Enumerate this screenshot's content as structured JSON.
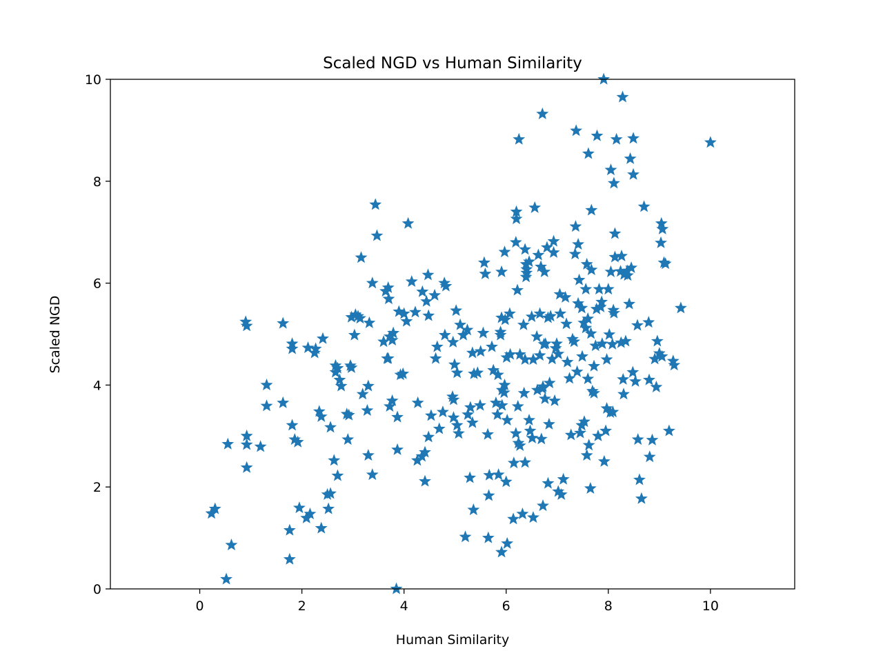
{
  "chart_data": {
    "type": "scatter",
    "title": "Scaled NGD vs Human Similarity",
    "xlabel": "Human Similarity",
    "ylabel": "Scaled NGD",
    "xlim": [
      -1.75,
      11.65
    ],
    "ylim": [
      0,
      10
    ],
    "xticks": [
      0,
      2,
      4,
      6,
      8,
      10
    ],
    "yticks": [
      0,
      2,
      4,
      6,
      8,
      10
    ],
    "xtick_labels": [
      "0",
      "2",
      "4",
      "6",
      "8",
      "10"
    ],
    "ytick_labels": [
      "0",
      "2",
      "4",
      "6",
      "8",
      "10"
    ],
    "grid": false,
    "marker": "star",
    "color": "#1f77b4",
    "series": [
      {
        "points": [
          [
            0.23,
            1.48
          ],
          [
            0.3,
            1.57
          ],
          [
            0.52,
            0.19
          ],
          [
            0.55,
            2.84
          ],
          [
            0.62,
            0.86
          ],
          [
            0.9,
            5.24
          ],
          [
            0.92,
            5.16
          ],
          [
            0.92,
            3.0
          ],
          [
            0.92,
            2.83
          ],
          [
            0.92,
            2.38
          ],
          [
            1.19,
            2.79
          ],
          [
            1.31,
            4.0
          ],
          [
            1.31,
            3.59
          ],
          [
            1.63,
            5.21
          ],
          [
            1.63,
            3.65
          ],
          [
            1.76,
            1.15
          ],
          [
            1.76,
            0.58
          ],
          [
            1.81,
            4.81
          ],
          [
            1.81,
            4.71
          ],
          [
            1.81,
            3.21
          ],
          [
            1.86,
            2.93
          ],
          [
            1.92,
            2.88
          ],
          [
            1.95,
            1.59
          ],
          [
            2.09,
            1.39
          ],
          [
            2.12,
            4.73
          ],
          [
            2.16,
            1.47
          ],
          [
            2.25,
            4.63
          ],
          [
            2.27,
            4.71
          ],
          [
            2.34,
            3.48
          ],
          [
            2.38,
            3.38
          ],
          [
            2.38,
            1.19
          ],
          [
            2.41,
            4.91
          ],
          [
            2.5,
            1.85
          ],
          [
            2.52,
            1.57
          ],
          [
            2.56,
            1.87
          ],
          [
            2.56,
            3.17
          ],
          [
            2.63,
            2.52
          ],
          [
            2.66,
            4.38
          ],
          [
            2.66,
            4.25
          ],
          [
            2.7,
            4.33
          ],
          [
            2.7,
            2.22
          ],
          [
            2.74,
            4.1
          ],
          [
            2.77,
            3.98
          ],
          [
            2.88,
            3.43
          ],
          [
            2.9,
            2.93
          ],
          [
            2.92,
            3.41
          ],
          [
            2.95,
            4.38
          ],
          [
            2.97,
            4.34
          ],
          [
            2.97,
            5.33
          ],
          [
            3.03,
            4.98
          ],
          [
            3.05,
            5.38
          ],
          [
            3.1,
            5.35
          ],
          [
            3.14,
            5.31
          ],
          [
            3.16,
            6.5
          ],
          [
            3.19,
            3.82
          ],
          [
            3.28,
            3.5
          ],
          [
            3.3,
            2.62
          ],
          [
            3.3,
            3.98
          ],
          [
            3.32,
            5.22
          ],
          [
            3.38,
            2.24
          ],
          [
            3.38,
            6.0
          ],
          [
            3.44,
            7.54
          ],
          [
            3.47,
            6.93
          ],
          [
            3.6,
            4.85
          ],
          [
            3.64,
            5.84
          ],
          [
            3.67,
            4.52
          ],
          [
            3.69,
            4.52
          ],
          [
            3.69,
            5.91
          ],
          [
            3.7,
            5.69
          ],
          [
            3.72,
            4.95
          ],
          [
            3.72,
            3.58
          ],
          [
            3.77,
            3.69
          ],
          [
            3.77,
            4.88
          ],
          [
            3.79,
            5.02
          ],
          [
            3.85,
            0.0
          ],
          [
            3.87,
            2.73
          ],
          [
            3.87,
            3.37
          ],
          [
            3.9,
            5.44
          ],
          [
            3.93,
            4.2
          ],
          [
            3.98,
            4.22
          ],
          [
            4.0,
            5.4
          ],
          [
            4.05,
            5.25
          ],
          [
            4.08,
            7.17
          ],
          [
            4.15,
            6.03
          ],
          [
            4.22,
            5.43
          ],
          [
            4.26,
            2.52
          ],
          [
            4.27,
            3.65
          ],
          [
            4.35,
            2.6
          ],
          [
            4.36,
            5.83
          ],
          [
            4.41,
            2.11
          ],
          [
            4.41,
            2.68
          ],
          [
            4.44,
            5.64
          ],
          [
            4.47,
            6.16
          ],
          [
            4.48,
            5.36
          ],
          [
            4.48,
            2.98
          ],
          [
            4.53,
            3.4
          ],
          [
            4.6,
            5.76
          ],
          [
            4.62,
            4.52
          ],
          [
            4.65,
            4.75
          ],
          [
            4.69,
            3.14
          ],
          [
            4.76,
            3.47
          ],
          [
            4.79,
            6.0
          ],
          [
            4.8,
            4.98
          ],
          [
            4.82,
            5.94
          ],
          [
            4.95,
            3.77
          ],
          [
            4.96,
            4.84
          ],
          [
            4.97,
            3.71
          ],
          [
            4.97,
            3.36
          ],
          [
            4.99,
            4.4
          ],
          [
            5.02,
            5.46
          ],
          [
            5.04,
            3.21
          ],
          [
            5.04,
            4.24
          ],
          [
            5.07,
            3.05
          ],
          [
            5.1,
            5.18
          ],
          [
            5.16,
            4.98
          ],
          [
            5.2,
            1.02
          ],
          [
            5.24,
            5.08
          ],
          [
            5.25,
            3.42
          ],
          [
            5.29,
            2.18
          ],
          [
            5.3,
            3.56
          ],
          [
            5.34,
            4.63
          ],
          [
            5.34,
            3.26
          ],
          [
            5.36,
            1.55
          ],
          [
            5.37,
            4.22
          ],
          [
            5.44,
            4.24
          ],
          [
            5.49,
            3.6
          ],
          [
            5.5,
            4.66
          ],
          [
            5.55,
            5.02
          ],
          [
            5.57,
            6.4
          ],
          [
            5.59,
            6.18
          ],
          [
            5.64,
            3.03
          ],
          [
            5.65,
            1.0
          ],
          [
            5.66,
            1.83
          ],
          [
            5.67,
            2.23
          ],
          [
            5.72,
            4.75
          ],
          [
            5.75,
            4.29
          ],
          [
            5.8,
            3.65
          ],
          [
            5.83,
            3.42
          ],
          [
            5.84,
            4.2
          ],
          [
            5.85,
            2.24
          ],
          [
            5.89,
            5.04
          ],
          [
            5.89,
            4.98
          ],
          [
            5.91,
            5.32
          ],
          [
            5.91,
            6.22
          ],
          [
            5.91,
            0.72
          ],
          [
            5.92,
            3.9
          ],
          [
            5.92,
            3.6
          ],
          [
            5.96,
            3.85
          ],
          [
            5.97,
            6.61
          ],
          [
            5.97,
            4.0
          ],
          [
            5.98,
            5.28
          ],
          [
            6.0,
            2.1
          ],
          [
            6.01,
            4.54
          ],
          [
            6.02,
            0.89
          ],
          [
            6.02,
            3.31
          ],
          [
            6.07,
            5.4
          ],
          [
            6.08,
            4.6
          ],
          [
            6.14,
            1.37
          ],
          [
            6.15,
            2.47
          ],
          [
            6.19,
            3.05
          ],
          [
            6.19,
            6.8
          ],
          [
            6.2,
            7.4
          ],
          [
            6.2,
            7.26
          ],
          [
            6.22,
            5.86
          ],
          [
            6.23,
            3.58
          ],
          [
            6.24,
            2.86
          ],
          [
            6.25,
            8.82
          ],
          [
            6.27,
            4.6
          ],
          [
            6.27,
            2.81
          ],
          [
            6.32,
            1.47
          ],
          [
            6.34,
            5.18
          ],
          [
            6.35,
            3.84
          ],
          [
            6.37,
            6.66
          ],
          [
            6.37,
            2.48
          ],
          [
            6.37,
            4.5
          ],
          [
            6.39,
            6.37
          ],
          [
            6.39,
            6.12
          ],
          [
            6.4,
            6.2
          ],
          [
            6.4,
            6.27
          ],
          [
            6.45,
            6.42
          ],
          [
            6.45,
            3.31
          ],
          [
            6.47,
            3.1
          ],
          [
            6.5,
            5.34
          ],
          [
            6.51,
            2.96
          ],
          [
            6.53,
            4.5
          ],
          [
            6.53,
            1.4
          ],
          [
            6.56,
            7.48
          ],
          [
            6.6,
            4.95
          ],
          [
            6.61,
            3.9
          ],
          [
            6.63,
            6.55
          ],
          [
            6.66,
            5.4
          ],
          [
            6.66,
            4.58
          ],
          [
            6.68,
            6.32
          ],
          [
            6.69,
            2.94
          ],
          [
            6.71,
            9.32
          ],
          [
            6.71,
            3.93
          ],
          [
            6.72,
            1.63
          ],
          [
            6.72,
            3.97
          ],
          [
            6.74,
            4.8
          ],
          [
            6.75,
            6.22
          ],
          [
            6.76,
            3.73
          ],
          [
            6.77,
            4.81
          ],
          [
            6.8,
            6.7
          ],
          [
            6.82,
            2.07
          ],
          [
            6.82,
            5.32
          ],
          [
            6.84,
            3.23
          ],
          [
            6.85,
            4.04
          ],
          [
            6.87,
            5.35
          ],
          [
            6.9,
            4.51
          ],
          [
            6.93,
            6.6
          ],
          [
            6.93,
            6.82
          ],
          [
            6.95,
            3.69
          ],
          [
            6.97,
            4.72
          ],
          [
            6.99,
            4.81
          ],
          [
            7.02,
            4.61
          ],
          [
            7.02,
            1.91
          ],
          [
            7.05,
            5.78
          ],
          [
            7.06,
            5.4
          ],
          [
            7.08,
            1.85
          ],
          [
            7.12,
            2.15
          ],
          [
            7.16,
            5.72
          ],
          [
            7.18,
            5.2
          ],
          [
            7.2,
            4.45
          ],
          [
            7.24,
            4.13
          ],
          [
            7.27,
            3.02
          ],
          [
            7.3,
            4.9
          ],
          [
            7.33,
            4.85
          ],
          [
            7.35,
            6.57
          ],
          [
            7.36,
            7.11
          ],
          [
            7.37,
            8.99
          ],
          [
            7.39,
            4.26
          ],
          [
            7.41,
            6.76
          ],
          [
            7.41,
            5.6
          ],
          [
            7.43,
            6.06
          ],
          [
            7.45,
            3.06
          ],
          [
            7.48,
            5.51
          ],
          [
            7.48,
            3.21
          ],
          [
            7.49,
            4.56
          ],
          [
            7.52,
            5.22
          ],
          [
            7.53,
            3.28
          ],
          [
            7.56,
            5.12
          ],
          [
            7.56,
            5.88
          ],
          [
            7.58,
            6.37
          ],
          [
            7.58,
            2.62
          ],
          [
            7.6,
            4.12
          ],
          [
            7.6,
            5.3
          ],
          [
            7.61,
            8.54
          ],
          [
            7.62,
            2.82
          ],
          [
            7.65,
            1.97
          ],
          [
            7.66,
            5.01
          ],
          [
            7.67,
            7.43
          ],
          [
            7.67,
            6.26
          ],
          [
            7.69,
            3.88
          ],
          [
            7.72,
            4.37
          ],
          [
            7.72,
            3.84
          ],
          [
            7.75,
            4.77
          ],
          [
            7.77,
            5.49
          ],
          [
            7.78,
            8.89
          ],
          [
            7.8,
            3.0
          ],
          [
            7.82,
            5.88
          ],
          [
            7.85,
            5.53
          ],
          [
            7.87,
            5.63
          ],
          [
            7.88,
            4.81
          ],
          [
            7.91,
            10.0
          ],
          [
            7.92,
            2.5
          ],
          [
            7.95,
            3.1
          ],
          [
            7.97,
            4.5
          ],
          [
            7.97,
            3.54
          ],
          [
            8.0,
            5.88
          ],
          [
            8.02,
            4.99
          ],
          [
            8.04,
            3.46
          ],
          [
            8.05,
            8.22
          ],
          [
            8.05,
            6.22
          ],
          [
            8.08,
            4.8
          ],
          [
            8.09,
            3.47
          ],
          [
            8.1,
            5.47
          ],
          [
            8.11,
            5.41
          ],
          [
            8.11,
            7.96
          ],
          [
            8.13,
            6.51
          ],
          [
            8.13,
            6.97
          ],
          [
            8.16,
            8.82
          ],
          [
            8.24,
            6.23
          ],
          [
            8.25,
            4.83
          ],
          [
            8.26,
            6.53
          ],
          [
            8.28,
            9.65
          ],
          [
            8.29,
            4.11
          ],
          [
            8.3,
            3.82
          ],
          [
            8.31,
            6.17
          ],
          [
            8.34,
            4.86
          ],
          [
            8.37,
            6.24
          ],
          [
            8.38,
            6.15
          ],
          [
            8.41,
            5.59
          ],
          [
            8.43,
            8.44
          ],
          [
            8.45,
            6.3
          ],
          [
            8.48,
            4.25
          ],
          [
            8.49,
            8.84
          ],
          [
            8.49,
            8.13
          ],
          [
            8.53,
            4.07
          ],
          [
            8.57,
            5.17
          ],
          [
            8.58,
            2.93
          ],
          [
            8.61,
            2.14
          ],
          [
            8.65,
            1.77
          ],
          [
            8.7,
            7.5
          ],
          [
            8.79,
            5.23
          ],
          [
            8.8,
            4.1
          ],
          [
            8.81,
            2.59
          ],
          [
            8.86,
            2.92
          ],
          [
            8.91,
            4.51
          ],
          [
            8.94,
            3.96
          ],
          [
            8.96,
            4.86
          ],
          [
            9.0,
            4.62
          ],
          [
            9.03,
            6.79
          ],
          [
            9.04,
            7.17
          ],
          [
            9.05,
            4.56
          ],
          [
            9.06,
            7.06
          ],
          [
            9.09,
            6.4
          ],
          [
            9.12,
            6.38
          ],
          [
            9.19,
            3.1
          ],
          [
            9.27,
            4.47
          ],
          [
            9.29,
            4.39
          ],
          [
            9.42,
            5.51
          ],
          [
            10.0,
            8.76
          ]
        ]
      }
    ]
  }
}
